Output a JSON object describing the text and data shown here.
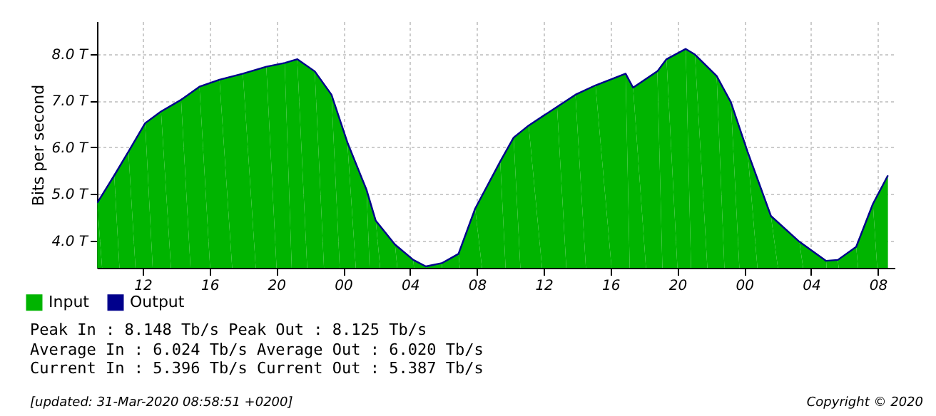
{
  "chart_data": {
    "type": "area",
    "ylabel": "Bits per second",
    "x": [
      9.28,
      10.3,
      11.15,
      12.15,
      13.1,
      14.3,
      15.4,
      16.6,
      18.0,
      19.4,
      20.5,
      21.25,
      22.3,
      23.3,
      24.25,
      25.4,
      25.95,
      27.1,
      28.2,
      28.95,
      29.9,
      30.9,
      31.9,
      33.4,
      34.2,
      35.1,
      36.8,
      37.9,
      39.1,
      40.9,
      41.35,
      42.8,
      43.35,
      44.5,
      45.05,
      46.35,
      47.2,
      48.2,
      49.6,
      51.3,
      52.9,
      53.6,
      54.7,
      55.7,
      56.6
    ],
    "series": [
      {
        "name": "Input",
        "color": "#00b400",
        "values": [
          4.81,
          5.4,
          5.91,
          6.52,
          6.77,
          7.02,
          7.3,
          7.45,
          7.58,
          7.73,
          7.81,
          7.89,
          7.63,
          7.13,
          6.11,
          5.09,
          4.43,
          3.92,
          3.59,
          3.45,
          3.52,
          3.72,
          4.69,
          5.7,
          6.21,
          6.47,
          6.87,
          7.13,
          7.33,
          7.58,
          7.28,
          7.63,
          7.89,
          8.11,
          7.99,
          7.53,
          6.97,
          5.91,
          4.53,
          3.98,
          3.57,
          3.59,
          3.87,
          4.79,
          5.4
        ]
      },
      {
        "name": "Output",
        "type": "line",
        "color": "#00008c",
        "values": [
          4.81,
          5.4,
          5.91,
          6.52,
          6.77,
          7.02,
          7.3,
          7.45,
          7.58,
          7.73,
          7.81,
          7.89,
          7.63,
          7.13,
          6.11,
          5.09,
          4.43,
          3.92,
          3.59,
          3.45,
          3.52,
          3.72,
          4.69,
          5.7,
          6.21,
          6.47,
          6.87,
          7.13,
          7.33,
          7.58,
          7.28,
          7.63,
          7.89,
          8.11,
          7.99,
          7.53,
          6.97,
          5.91,
          4.53,
          3.98,
          3.57,
          3.59,
          3.87,
          4.79,
          5.4
        ]
      }
    ],
    "xlim": [
      9.27,
      57.0
    ],
    "xticks": [
      {
        "value": 12,
        "label": "12"
      },
      {
        "value": 16,
        "label": "16"
      },
      {
        "value": 20,
        "label": "20"
      },
      {
        "value": 24,
        "label": "00"
      },
      {
        "value": 28,
        "label": "04"
      },
      {
        "value": 32,
        "label": "08"
      },
      {
        "value": 36,
        "label": "12"
      },
      {
        "value": 40,
        "label": "16"
      },
      {
        "value": 44,
        "label": "20"
      },
      {
        "value": 48,
        "label": "00"
      },
      {
        "value": 52,
        "label": "04"
      },
      {
        "value": 56,
        "label": "08"
      }
    ],
    "ylim": [
      3.42,
      8.7
    ],
    "yticks": [
      {
        "value": 4,
        "label": "4.0 T"
      },
      {
        "value": 5,
        "label": "5.0 T"
      },
      {
        "value": 6,
        "label": "6.0 T"
      },
      {
        "value": 7,
        "label": "7.0 T"
      },
      {
        "value": 8,
        "label": "8.0 T"
      }
    ],
    "grid": true,
    "legend": "bottom left",
    "annotations": [
      "Peak In    :    8.148 Tb/s  Peak Out    :    8.125 Tb/s",
      "Average In :    6.024 Tb/s  Average Out :    6.020 Tb/s",
      "Current In :    5.396 Tb/s  Current Out :    5.387 Tb/s",
      "[updated: 31-Mar-2020 08:58:51 +0200]",
      "Copyright © 2020"
    ]
  }
}
